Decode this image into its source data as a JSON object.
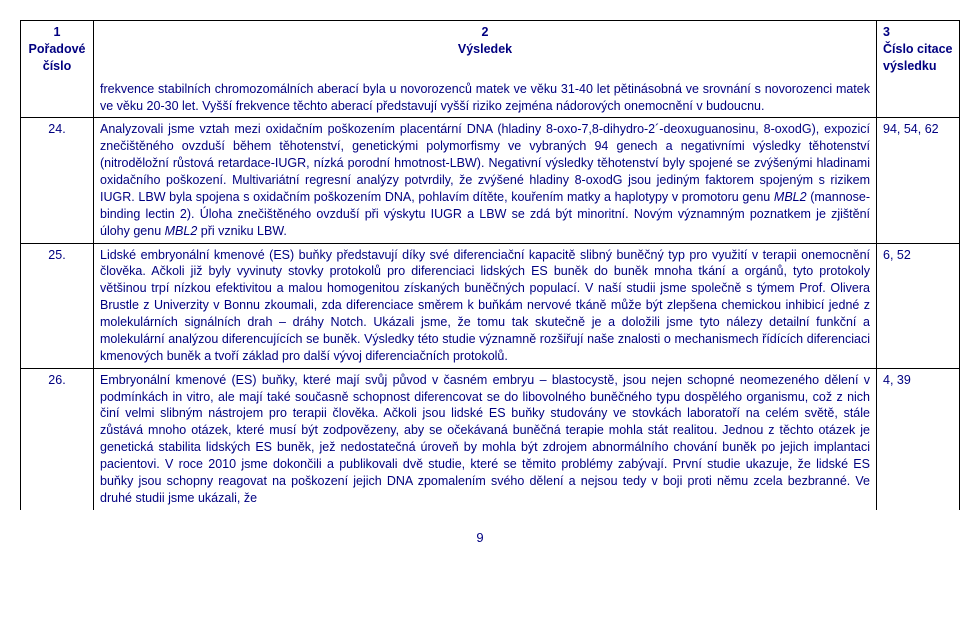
{
  "header": {
    "col1_num": "1",
    "col1_label": "Pořadové číslo",
    "col2_num": "2",
    "col2_label": "Výsledek",
    "col3_num": "3",
    "col3_label": "Číslo citace výsledku"
  },
  "rows": [
    {
      "num": "",
      "text": "frekvence stabilních chromozomálních aberací byla u novorozenců matek ve věku 31-40 let pětinásobná ve srovnání s novorozenci matek ve věku 20-30 let. Vyšší frekvence těchto aberací představují vyšší riziko zejména nádorových onemocnění v budoucnu.",
      "cite": ""
    },
    {
      "num": "24.",
      "text_pre": "Analyzovali jsme vztah mezi oxidačním poškozením placentární DNA (hladiny 8-oxo-7,8-dihydro-2´-deoxuguanosinu, 8-oxodG), expozicí znečištěného ovzduší během těhotenství, genetickými polymorfismy ve vybraných 94 genech a negativními výsledky těhotenství (nitroděložní růstová retardace-IUGR, nízká porodní hmotnost-LBW). Negativní výsledky těhotenství byly spojené se zvýšenými hladinami oxidačního poškození. Multivariátní regresní analýzy potvrdily, že zvýšené hladiny 8-oxodG jsou jediným faktorem spojeným s rizikem IUGR. LBW byla spojena s oxidačním poškozením DNA, pohlavím dítěte, kouřením matky a haplotypy v promotoru genu ",
      "italic1": "MBL2",
      "text_mid": " (mannose-binding lectin 2). Úloha znečištěného ovzduší při výskytu IUGR a LBW se zdá být minoritní. Novým významným poznatkem je zjištění úlohy genu ",
      "italic2": "MBL2",
      "text_post": " při vzniku LBW.",
      "cite": "94, 54, 62"
    },
    {
      "num": "25.",
      "text": "Lidské embryonální kmenové (ES) buňky představují díky své diferenciační kapacitě slibný buněčný typ pro využití v terapii onemocnění člověka. Ačkoli již byly vyvinuty stovky protokolů pro diferenciaci lidských ES buněk do buněk mnoha tkání a orgánů, tyto protokoly většinou trpí nízkou efektivitou a malou homogenitou získaných buněčných populací. V naší studii jsme společně s týmem Prof. Olivera Brustle z Univerzity v Bonnu zkoumali, zda diferenciace směrem k buňkám nervové tkáně může být zlepšena chemickou inhibicí jedné z molekulárních signálních drah – dráhy Notch. Ukázali jsme, že tomu tak skutečně je a doložili jsme tyto nálezy detailní funkční a molekulární analýzou diferencujících se buněk. Výsledky této studie významně rozšiřují naše znalosti o mechanismech řídících diferenciaci kmenových buněk a tvoří základ pro další vývoj diferenciačních protokolů.",
      "cite": "6, 52"
    },
    {
      "num": "26.",
      "text": "Embryonální kmenové (ES) buňky, které mají svůj původ v časném embryu – blastocystě, jsou nejen schopné neomezeného dělení v podmínkách in vitro, ale mají také současně schopnost diferencovat se do libovolného buněčného typu dospělého organismu, což z nich činí velmi slibným nástrojem pro terapii člověka. Ačkoli jsou lidské ES buňky studovány ve stovkách laboratoří na celém světě, stále zůstává mnoho otázek, které musí být zodpovězeny, aby se očekávaná buněčná terapie mohla stát realitou. Jednou z těchto otázek je genetická stabilita lidských ES buněk, jež nedostatečná úroveň by mohla být zdrojem abnormálního chování buněk po jejich implantaci pacientovi. V roce 2010 jsme dokončili a publikovali dvě studie, které se těmito problémy zabývají.  První studie ukazuje, že lidské ES buňky jsou schopny reagovat na poškození jejich DNA zpomalením svého dělení a nejsou tedy v boji proti němu zcela bezbranné.  Ve druhé studii jsme ukázali, že",
      "cite": "4, 39"
    }
  ],
  "page_number": "9",
  "colors": {
    "text": "#000080",
    "border": "#000000",
    "background": "#ffffff"
  }
}
